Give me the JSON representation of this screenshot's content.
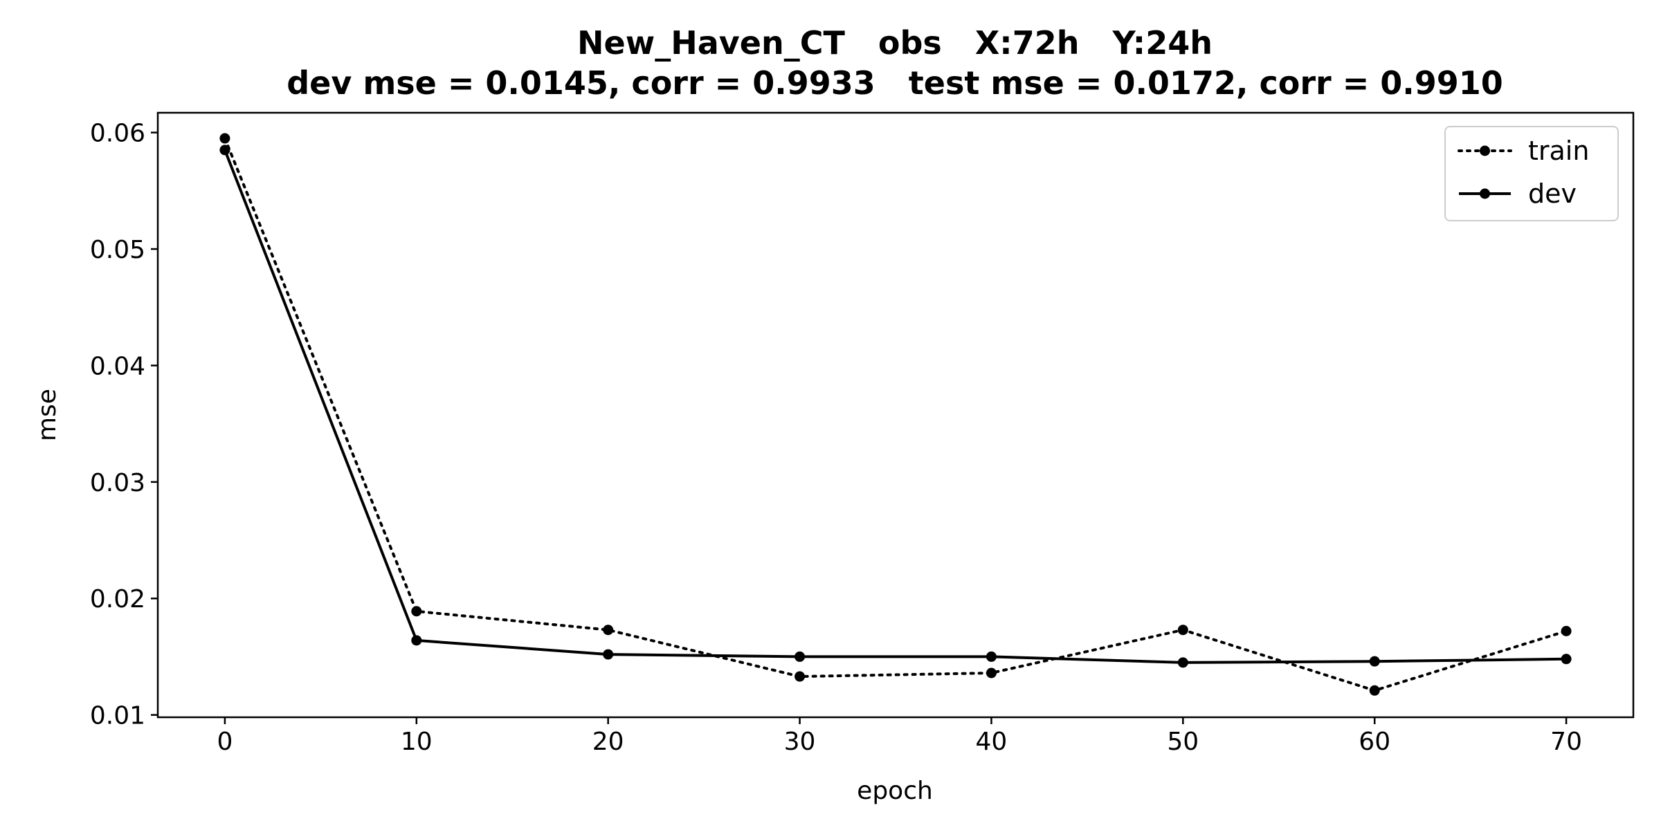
{
  "chart_data": {
    "type": "line",
    "title": "New_Haven_CT   obs   X:72h   Y:24h",
    "subtitle": "dev mse = 0.0145, corr = 0.9933   test mse = 0.0172, corr = 0.9910",
    "xlabel": "epoch",
    "ylabel": "mse",
    "xlim": [
      -3.5,
      73.5
    ],
    "ylim": [
      0.0098,
      0.0617
    ],
    "xticks": [
      0,
      10,
      20,
      30,
      40,
      50,
      60,
      70
    ],
    "xtick_labels": [
      "0",
      "10",
      "20",
      "30",
      "40",
      "50",
      "60",
      "70"
    ],
    "yticks": [
      0.01,
      0.02,
      0.03,
      0.04,
      0.05,
      0.06
    ],
    "ytick_labels": [
      "0.01",
      "0.02",
      "0.03",
      "0.04",
      "0.05",
      "0.06"
    ],
    "grid": false,
    "legend_position": "top-right",
    "x": [
      0,
      10,
      20,
      30,
      40,
      50,
      60,
      70
    ],
    "series": [
      {
        "name": "train",
        "style": "dotted",
        "marker": "circle",
        "color": "#000000",
        "values": [
          0.0595,
          0.0189,
          0.0173,
          0.0133,
          0.0136,
          0.0173,
          0.0121,
          0.0172
        ]
      },
      {
        "name": "dev",
        "style": "solid",
        "marker": "circle",
        "color": "#000000",
        "values": [
          0.0585,
          0.0164,
          0.0152,
          0.015,
          0.015,
          0.0145,
          0.0146,
          0.0148
        ]
      }
    ]
  }
}
